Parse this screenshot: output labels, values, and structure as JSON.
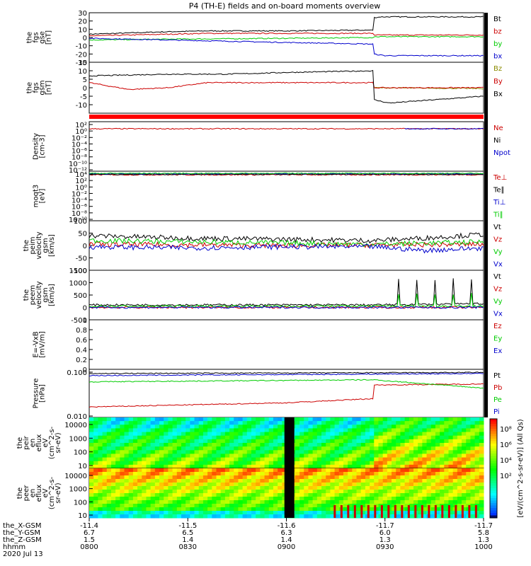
{
  "title": "P4 (TH-E) fields and on-board moments overview",
  "colors": {
    "black": "#000000",
    "red": "#cc0000",
    "green": "#00cc00",
    "blue": "#0000cc",
    "darkred": "#8b0000",
    "olive": "#8b8b00"
  },
  "chart_data": [
    {
      "id": "fgs_gse",
      "type": "line",
      "ylabel": [
        "the",
        "fgs",
        "gse",
        "[nT]"
      ],
      "ylim": [
        -30,
        30
      ],
      "yticks": [
        30,
        20,
        10,
        0,
        -10,
        -20,
        -30
      ],
      "series": [
        {
          "name": "Bt",
          "color": "#000000",
          "knots": [
            [
              0,
              4
            ],
            [
              0.2,
              7
            ],
            [
              0.3,
              8
            ],
            [
              0.5,
              8
            ],
            [
              0.72,
              9
            ],
            [
              0.72,
              24
            ],
            [
              0.74,
              25
            ],
            [
              1,
              25
            ]
          ]
        },
        {
          "name": "bz",
          "color": "#cc0000",
          "knots": [
            [
              0,
              2
            ],
            [
              0.3,
              5
            ],
            [
              0.72,
              5
            ],
            [
              0.72,
              3
            ],
            [
              1,
              3
            ]
          ]
        },
        {
          "name": "by",
          "color": "#00cc00",
          "knots": [
            [
              0,
              -3
            ],
            [
              0.2,
              -2
            ],
            [
              0.5,
              -1
            ],
            [
              0.72,
              0
            ],
            [
              0.72,
              1
            ],
            [
              1,
              1
            ]
          ]
        },
        {
          "name": "bx",
          "color": "#0000cc",
          "knots": [
            [
              0,
              -1
            ],
            [
              0.2,
              -3
            ],
            [
              0.5,
              -6
            ],
            [
              0.72,
              -8
            ],
            [
              0.72,
              -20
            ],
            [
              0.75,
              -22
            ],
            [
              1,
              -22
            ]
          ]
        }
      ]
    },
    {
      "id": "fgs_gsm",
      "type": "line",
      "ylabel": [
        "the",
        "fgs",
        "gsm",
        "[nT]"
      ],
      "ylim": [
        -15,
        15
      ],
      "yticks": [
        15,
        10,
        5,
        0,
        -5,
        -10
      ],
      "series": [
        {
          "name": "Bz",
          "color": "#8b8b00",
          "knots": [
            [
              0.72,
              0
            ],
            [
              1,
              -0.5
            ]
          ]
        },
        {
          "name": "By",
          "color": "#cc0000",
          "knots": [
            [
              0,
              3
            ],
            [
              0.1,
              -1
            ],
            [
              0.2,
              0
            ],
            [
              0.3,
              3
            ],
            [
              0.5,
              3
            ],
            [
              0.72,
              3
            ],
            [
              0.72,
              0
            ],
            [
              1,
              0
            ]
          ]
        },
        {
          "name": "Bx",
          "color": "#000000",
          "knots": [
            [
              0,
              7
            ],
            [
              0.2,
              8
            ],
            [
              0.35,
              8
            ],
            [
              0.5,
              9
            ],
            [
              0.72,
              10
            ],
            [
              0.72,
              -7
            ],
            [
              0.76,
              -9
            ],
            [
              1,
              -5
            ]
          ]
        }
      ]
    },
    {
      "id": "density",
      "type": "line",
      "log": true,
      "ylabel": [
        "Density",
        "[cm-3]"
      ],
      "ylim": [
        -12,
        2
      ],
      "ytick_labels": [
        "10²",
        "10⁰",
        "10⁻²",
        "10⁻⁴",
        "10⁻⁶",
        "10⁻⁸",
        "10⁻¹⁰",
        "10⁻¹²"
      ],
      "series": [
        {
          "name": "Ne",
          "color": "#cc0000",
          "knots": [
            [
              0,
              0
            ],
            [
              1,
              0
            ]
          ]
        },
        {
          "name": "Ni",
          "color": "#000000",
          "knots": []
        },
        {
          "name": "Npot",
          "color": "#0000cc",
          "knots": [
            [
              0.8,
              0
            ],
            [
              1,
              0
            ]
          ]
        }
      ]
    },
    {
      "id": "temp",
      "type": "line",
      "log": true,
      "ylabel": [
        "moqt3",
        "[eV]"
      ],
      "ylim": [
        -10,
        4
      ],
      "ytick_labels": [
        "10⁴",
        "10²",
        "10⁰",
        "10⁻²",
        "10⁻⁴",
        "10⁻⁶",
        "10⁻⁸",
        "10⁻¹⁰"
      ],
      "series": [
        {
          "name": "Te⊥",
          "color": "#cc0000",
          "knots": [
            [
              0,
              3
            ],
            [
              1,
              3
            ]
          ]
        },
        {
          "name": "Te∥",
          "color": "#000000",
          "knots": [
            [
              0,
              3.1
            ],
            [
              1,
              3.1
            ]
          ]
        },
        {
          "name": "Ti⊥",
          "color": "#0000cc",
          "knots": [
            [
              0,
              3.3
            ],
            [
              1,
              3.3
            ]
          ]
        },
        {
          "name": "Ti∥",
          "color": "#00cc00",
          "knots": [
            [
              0,
              3.4
            ],
            [
              1,
              3.4
            ]
          ]
        }
      ]
    },
    {
      "id": "peim_vel",
      "type": "line",
      "ylabel": [
        "the",
        "peim",
        "velocity",
        "gsm",
        "[km/s]"
      ],
      "ylim": [
        -100,
        100
      ],
      "yticks": [
        100,
        50,
        0,
        -50,
        -100
      ],
      "series": [
        {
          "name": "Vt",
          "color": "#000000",
          "knots": [
            [
              0,
              40
            ],
            [
              0.25,
              30
            ],
            [
              0.5,
              25
            ],
            [
              0.72,
              20
            ],
            [
              0.85,
              30
            ],
            [
              1,
              45
            ]
          ]
        },
        {
          "name": "Vz",
          "color": "#cc0000",
          "knots": [
            [
              0,
              5
            ],
            [
              0.5,
              0
            ],
            [
              1,
              5
            ]
          ]
        },
        {
          "name": "Vy",
          "color": "#00cc00",
          "knots": [
            [
              0,
              20
            ],
            [
              0.25,
              15
            ],
            [
              0.5,
              10
            ],
            [
              0.72,
              5
            ],
            [
              1,
              15
            ]
          ]
        },
        {
          "name": "Vx",
          "color": "#0000cc",
          "knots": [
            [
              0,
              -5
            ],
            [
              0.25,
              -10
            ],
            [
              0.5,
              -5
            ],
            [
              0.72,
              -5
            ],
            [
              0.85,
              -20
            ],
            [
              1,
              -10
            ]
          ]
        }
      ]
    },
    {
      "id": "peem_vel",
      "type": "line",
      "ylabel": [
        "the",
        "peem",
        "velocity",
        "gsm",
        "[km/s]"
      ],
      "ylim": [
        -500,
        1500
      ],
      "yticks": [
        1500,
        1000,
        500,
        0,
        -500
      ],
      "series": [
        {
          "name": "Vt",
          "color": "#000000",
          "knots": [
            [
              0,
              100
            ],
            [
              0.72,
              100
            ],
            [
              1,
              150
            ]
          ]
        },
        {
          "name": "Vz",
          "color": "#cc0000",
          "knots": [
            [
              0,
              0
            ],
            [
              1,
              0
            ]
          ]
        },
        {
          "name": "Vy",
          "color": "#00cc00",
          "knots": [
            [
              0,
              50
            ],
            [
              1,
              60
            ]
          ]
        },
        {
          "name": "Vx",
          "color": "#0000cc",
          "knots": [
            [
              0,
              0
            ],
            [
              1,
              0
            ]
          ]
        }
      ]
    },
    {
      "id": "efield",
      "type": "line",
      "ylabel": [
        "E=-VxB",
        "[mV/m]"
      ],
      "ylim": [
        0,
        1
      ],
      "yticks": [
        1.0,
        0.8,
        0.6,
        0.4,
        0.2,
        0.0
      ],
      "series": [
        {
          "name": "Ez",
          "color": "#cc0000",
          "knots": []
        },
        {
          "name": "Ey",
          "color": "#00cc00",
          "knots": []
        },
        {
          "name": "Ex",
          "color": "#0000cc",
          "knots": []
        }
      ]
    },
    {
      "id": "pressure",
      "type": "line",
      "log": true,
      "ylabel": [
        "Pressure",
        "[nPa]"
      ],
      "ylim": [
        -2.3,
        0
      ],
      "ytick_labels": [
        "0.100",
        "0.010"
      ],
      "series": [
        {
          "name": "Pt",
          "color": "#000000",
          "knots": [
            [
              0,
              -0.2
            ],
            [
              1,
              -0.15
            ]
          ]
        },
        {
          "name": "Pb",
          "color": "#cc0000",
          "knots": [
            [
              0,
              -1.8
            ],
            [
              0.5,
              -1.6
            ],
            [
              0.72,
              -1.4
            ],
            [
              0.72,
              -0.75
            ],
            [
              1,
              -0.7
            ]
          ]
        },
        {
          "name": "Pe",
          "color": "#00cc00",
          "knots": [
            [
              0,
              -0.6
            ],
            [
              0.72,
              -0.5
            ],
            [
              1,
              -0.9
            ]
          ]
        },
        {
          "name": "Pi",
          "color": "#0000cc",
          "knots": [
            [
              0,
              -0.3
            ],
            [
              1,
              -0.2
            ]
          ]
        }
      ]
    },
    {
      "id": "peir_spec",
      "type": "heatmap",
      "ylabel": [
        "the",
        "peir",
        "en",
        "eflux",
        "eV",
        "(cm^2-s-",
        "sr-eV)"
      ],
      "ytick_labels": [
        "10000",
        "1000",
        "100",
        "10"
      ]
    },
    {
      "id": "peer_spec",
      "type": "heatmap",
      "ylabel": [
        "the",
        "peer",
        "en",
        "eflux",
        "eV",
        "(cm^2-s-",
        "sr-eV)"
      ],
      "ytick_labels": [
        "10000",
        "1000",
        "100",
        "10"
      ]
    }
  ],
  "colorbar": {
    "label": "[eV/(cm^2-s-sr-eV)] (All Qs)",
    "ticks": [
      "10⁸",
      "10⁶",
      "10⁴",
      "10²"
    ]
  },
  "xaxis": {
    "rows": [
      {
        "label": "the_X-GSM",
        "values": [
          "-11.4",
          "-11.5",
          "-11.6",
          "-11.7",
          "-11.7"
        ]
      },
      {
        "label": "the_Y-GSM",
        "values": [
          "6.7",
          "6.5",
          "6.3",
          "6.0",
          "5.8"
        ]
      },
      {
        "label": "the_Z-GSM",
        "values": [
          "1.5",
          "1.4",
          "1.4",
          "1.3",
          "1.3"
        ]
      },
      {
        "label": "hhmm",
        "values": [
          "0800",
          "0830",
          "0900",
          "0930",
          "1000"
        ]
      }
    ],
    "date": "2020 Jul 13"
  }
}
